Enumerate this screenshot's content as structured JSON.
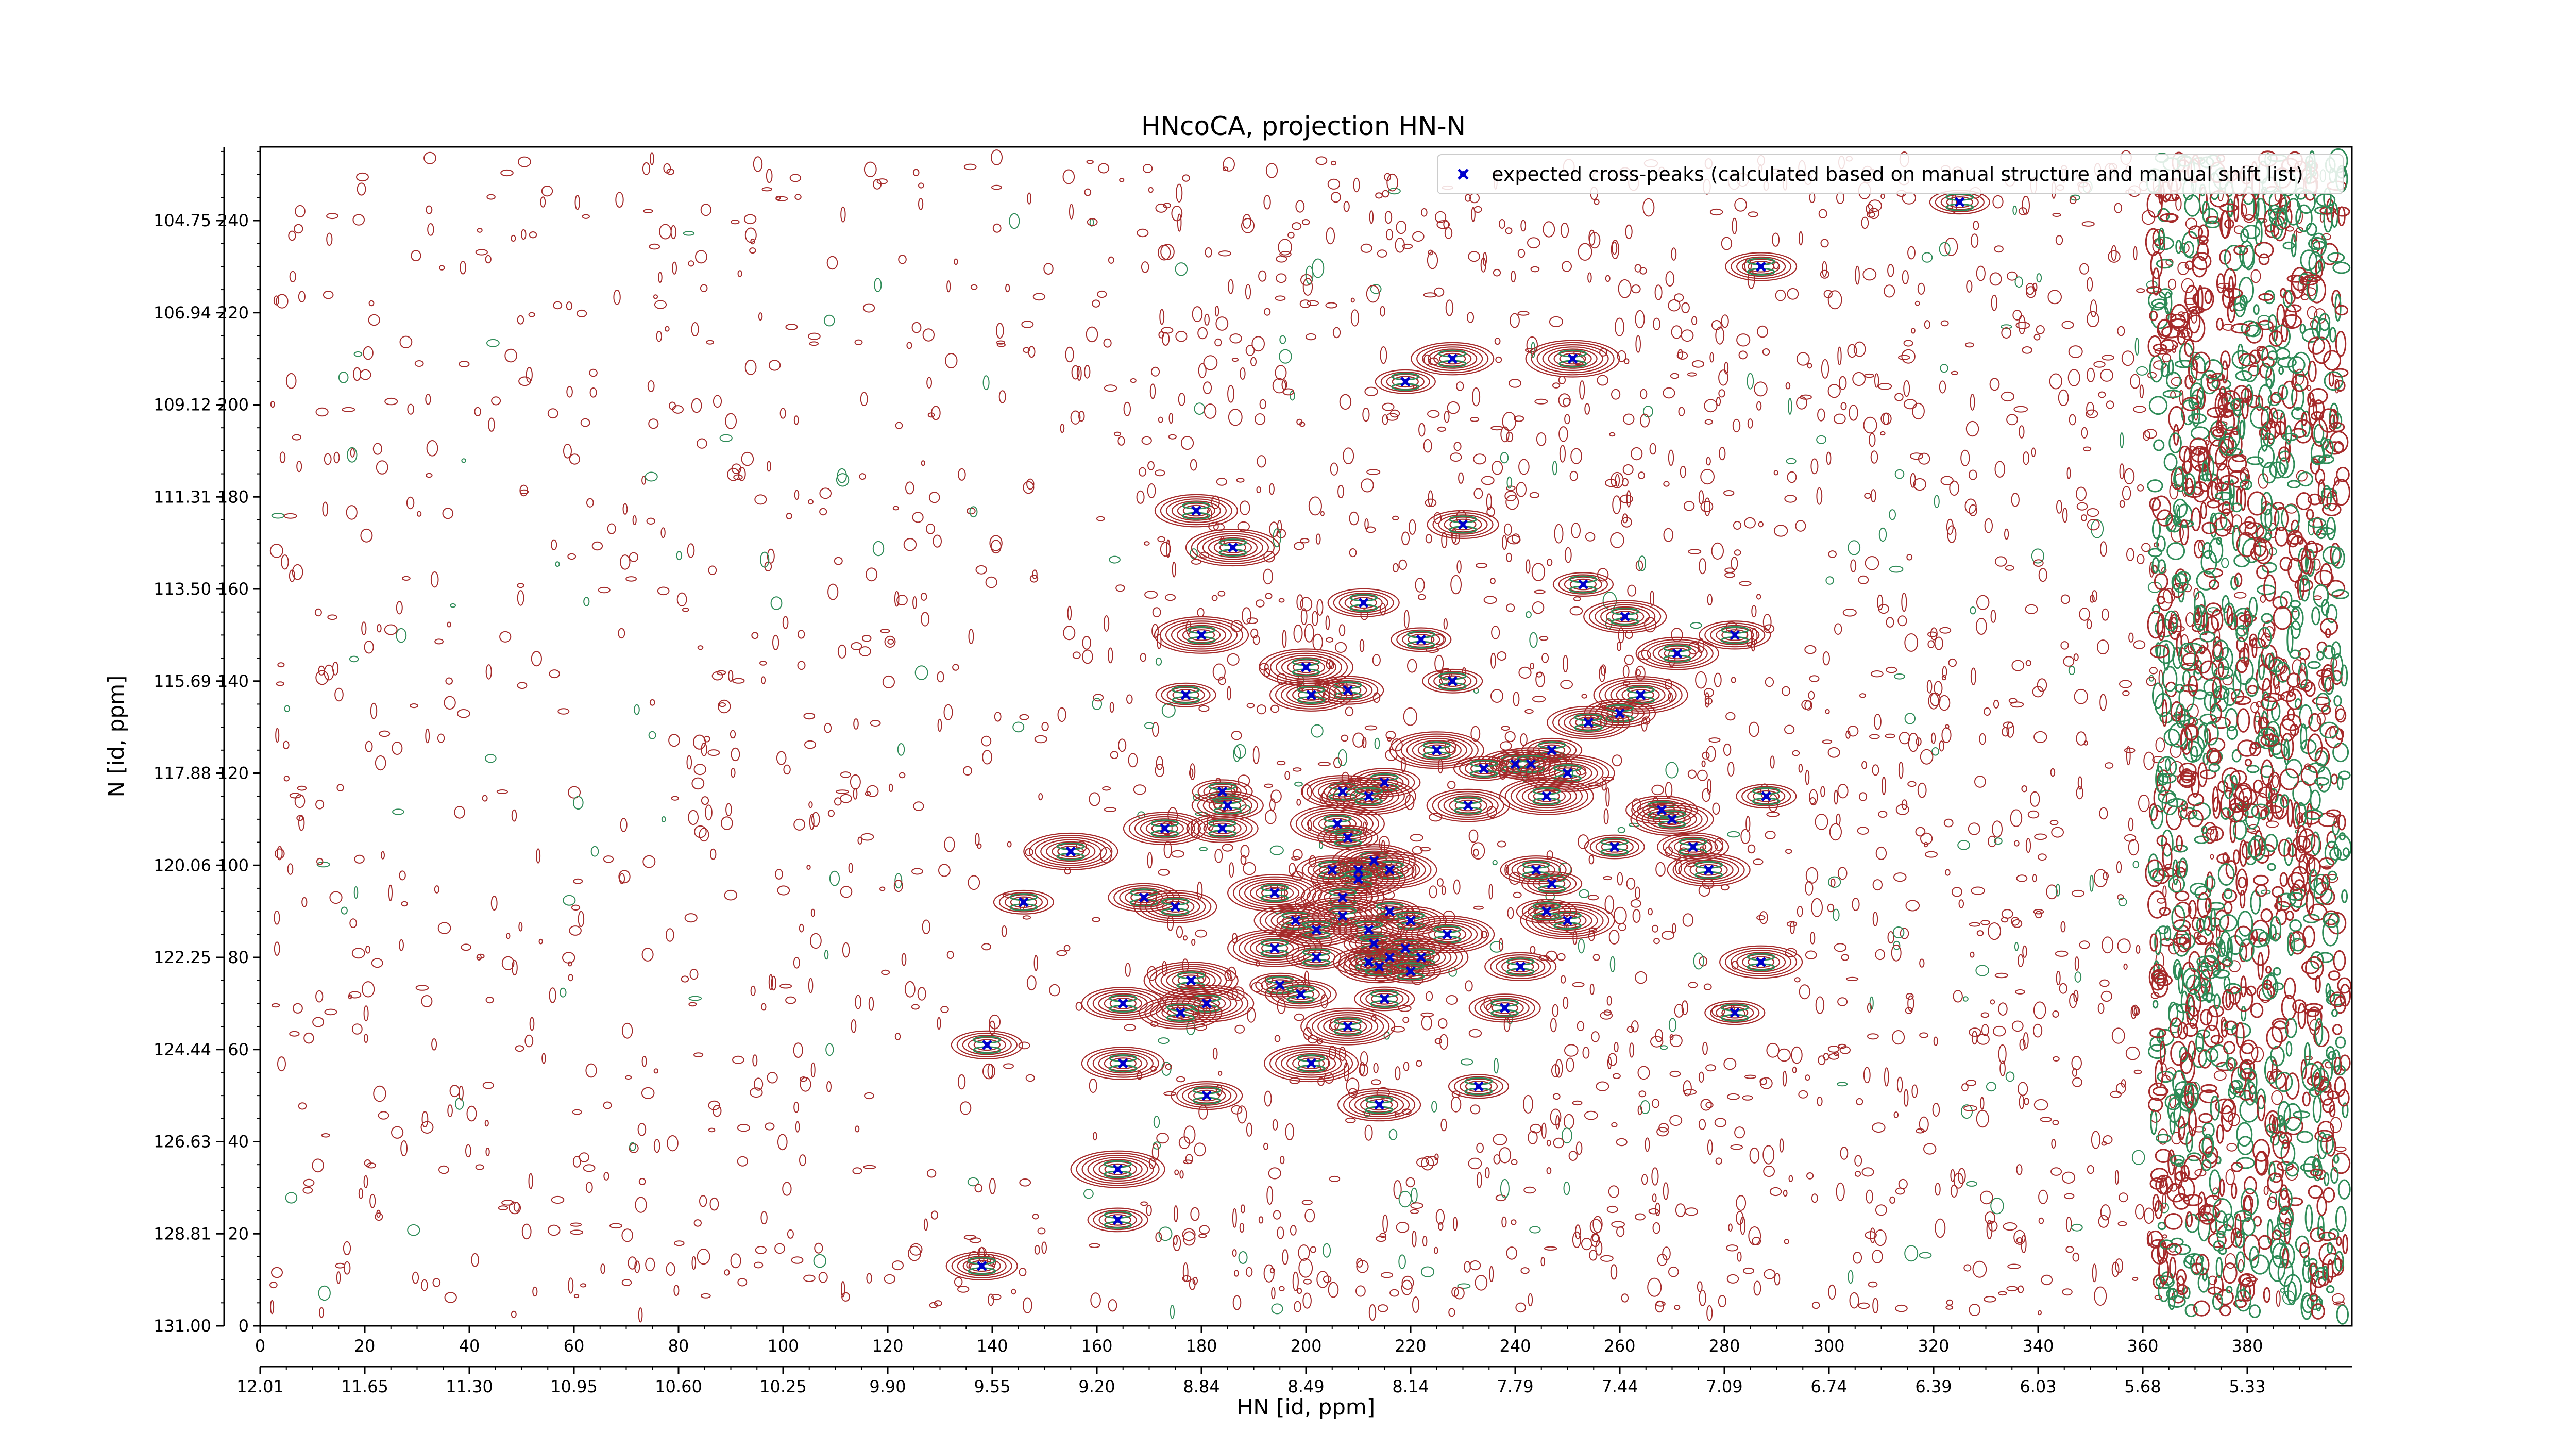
{
  "chart_data": {
    "type": "scatter",
    "title": "HNcoCA, projection HN-N",
    "xlabel": "HN [id, ppm]",
    "ylabel": "N [id, ppm]",
    "xlim": [
      0,
      400
    ],
    "ylim": [
      0,
      256
    ],
    "grid": false,
    "legend_position": "top-right",
    "x_ticks": [
      0,
      20,
      40,
      60,
      80,
      100,
      120,
      140,
      160,
      180,
      200,
      220,
      240,
      260,
      280,
      300,
      320,
      340,
      360,
      380
    ],
    "x_ppm_tick_labels": [
      "12.01",
      "11.65",
      "11.30",
      "10.95",
      "10.60",
      "10.25",
      "9.90",
      "9.55",
      "9.20",
      "8.84",
      "8.49",
      "8.14",
      "7.79",
      "7.44",
      "7.09",
      "6.74",
      "6.39",
      "6.03",
      "5.68",
      "5.33"
    ],
    "y_ticks": [
      0,
      20,
      40,
      60,
      80,
      100,
      120,
      140,
      160,
      180,
      200,
      220,
      240
    ],
    "y_ppm_tick_values": [
      131.0,
      128.81,
      126.63,
      124.44,
      122.25,
      120.06,
      117.88,
      115.69,
      113.5,
      111.31,
      109.12,
      106.94,
      104.75
    ],
    "y_ppm_tick_labels": [
      "131.00",
      "128.81",
      "126.63",
      "124.44",
      "122.25",
      "120.06",
      "117.88",
      "115.69",
      "113.50",
      "111.31",
      "109.12",
      "106.94",
      "104.75"
    ],
    "contour_colors": {
      "positive": "#a52a2a",
      "negative": "#2e8b57"
    },
    "series": [
      {
        "name": "expected cross-peaks (calculated based on manual structure and manual shift list)",
        "marker": "x",
        "color": "#0000cc",
        "points": [
          [
            325,
            244
          ],
          [
            287,
            230
          ],
          [
            228,
            210
          ],
          [
            251,
            210
          ],
          [
            219,
            205
          ],
          [
            230,
            174
          ],
          [
            179,
            177
          ],
          [
            186,
            169
          ],
          [
            253,
            161
          ],
          [
            211,
            157
          ],
          [
            261,
            154
          ],
          [
            180,
            150
          ],
          [
            222,
            149
          ],
          [
            282,
            150
          ],
          [
            271,
            146
          ],
          [
            200,
            143
          ],
          [
            228,
            140
          ],
          [
            208,
            138
          ],
          [
            201,
            137
          ],
          [
            264,
            137
          ],
          [
            177,
            137
          ],
          [
            260,
            133
          ],
          [
            254,
            131
          ],
          [
            225,
            125
          ],
          [
            247,
            125
          ],
          [
            240,
            122
          ],
          [
            243,
            122
          ],
          [
            250,
            120
          ],
          [
            234,
            121
          ],
          [
            215,
            118
          ],
          [
            207,
            116
          ],
          [
            212,
            115
          ],
          [
            184,
            116
          ],
          [
            185,
            113
          ],
          [
            231,
            113
          ],
          [
            246,
            115
          ],
          [
            288,
            115
          ],
          [
            268,
            112
          ],
          [
            270,
            110
          ],
          [
            206,
            109
          ],
          [
            208,
            106
          ],
          [
            184,
            108
          ],
          [
            173,
            108
          ],
          [
            155,
            103
          ],
          [
            259,
            104
          ],
          [
            274,
            104
          ],
          [
            213,
            101
          ],
          [
            216,
            99
          ],
          [
            210,
            99
          ],
          [
            205,
            99
          ],
          [
            277,
            99
          ],
          [
            210,
            97
          ],
          [
            247,
            96
          ],
          [
            244,
            99
          ],
          [
            207,
            93
          ],
          [
            194,
            94
          ],
          [
            146,
            92
          ],
          [
            169,
            93
          ],
          [
            175,
            91
          ],
          [
            207,
            89
          ],
          [
            216,
            90
          ],
          [
            220,
            88
          ],
          [
            198,
            88
          ],
          [
            250,
            88
          ],
          [
            246,
            90
          ],
          [
            212,
            86
          ],
          [
            202,
            86
          ],
          [
            227,
            85
          ],
          [
            213,
            83
          ],
          [
            219,
            82
          ],
          [
            216,
            80
          ],
          [
            194,
            82
          ],
          [
            202,
            80
          ],
          [
            212,
            79
          ],
          [
            214,
            78
          ],
          [
            222,
            80
          ],
          [
            220,
            77
          ],
          [
            241,
            78
          ],
          [
            287,
            79
          ],
          [
            178,
            75
          ],
          [
            195,
            74
          ],
          [
            199,
            72
          ],
          [
            165,
            70
          ],
          [
            181,
            70
          ],
          [
            215,
            71
          ],
          [
            238,
            69
          ],
          [
            176,
            68
          ],
          [
            208,
            65
          ],
          [
            282,
            68
          ],
          [
            139,
            61
          ],
          [
            165,
            57
          ],
          [
            201,
            57
          ],
          [
            233,
            52
          ],
          [
            181,
            50
          ],
          [
            214,
            48
          ],
          [
            164,
            34
          ],
          [
            164,
            23
          ],
          [
            138,
            13
          ]
        ]
      }
    ]
  }
}
